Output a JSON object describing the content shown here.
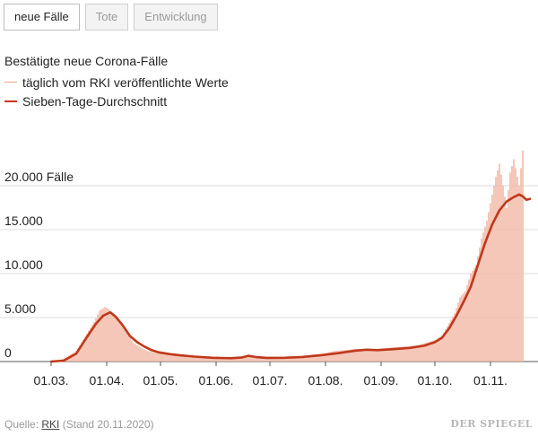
{
  "tabs": [
    {
      "label": "neue Fälle",
      "active": true
    },
    {
      "label": "Tote",
      "active": false
    },
    {
      "label": "Entwicklung",
      "active": false
    }
  ],
  "heading": "Bestätigte neue Corona-Fälle",
  "legend": {
    "daily": {
      "label": "täglich vom RKI veröffentlichte Werte",
      "color": "#e8a48a"
    },
    "average": {
      "label": "Sieben-Tage-Durchschnitt",
      "color": "#c0381b"
    }
  },
  "footer": {
    "source_prefix": "Quelle:",
    "source_link": "RKI",
    "source_suffix": "(Stand 20.11.2020)",
    "brand": "DER SPIEGEL"
  },
  "chart_data": {
    "type": "bar",
    "ylim": [
      0,
      25000
    ],
    "y_ticks": [
      0,
      5000,
      10000,
      15000,
      20000
    ],
    "y_tick_labels": [
      "0",
      "5.000",
      "10.000",
      "15.000",
      "20.000 Fälle"
    ],
    "x_tick_labels": [
      "01.03.",
      "01.04.",
      "01.05.",
      "01.06.",
      "01.07.",
      "01.08.",
      "01.09.",
      "01.10.",
      "01.11."
    ],
    "x_tick_days": [
      0,
      31,
      61,
      92,
      122,
      153,
      184,
      214,
      245
    ],
    "series": [
      {
        "name": "täglich vom RKI veröffentlichte Werte",
        "type": "bar",
        "color": "#f1b9a6",
        "points": [
          [
            0,
            20
          ],
          [
            7,
            300
          ],
          [
            14,
            1200
          ],
          [
            18,
            2500
          ],
          [
            21,
            3500
          ],
          [
            24,
            4500
          ],
          [
            27,
            5800
          ],
          [
            30,
            6200
          ],
          [
            32,
            6000
          ],
          [
            35,
            5200
          ],
          [
            38,
            4700
          ],
          [
            42,
            3300
          ],
          [
            46,
            2100
          ],
          [
            50,
            1600
          ],
          [
            54,
            1200
          ],
          [
            58,
            1000
          ],
          [
            62,
            900
          ],
          [
            66,
            700
          ],
          [
            70,
            650
          ],
          [
            75,
            600
          ],
          [
            82,
            450
          ],
          [
            90,
            350
          ],
          [
            100,
            400
          ],
          [
            105,
            450
          ],
          [
            110,
            800
          ],
          [
            114,
            600
          ],
          [
            118,
            450
          ],
          [
            124,
            400
          ],
          [
            132,
            450
          ],
          [
            140,
            550
          ],
          [
            146,
            800
          ],
          [
            152,
            900
          ],
          [
            158,
            1200
          ],
          [
            164,
            1300
          ],
          [
            170,
            1450
          ],
          [
            176,
            1400
          ],
          [
            182,
            1450
          ],
          [
            190,
            1600
          ],
          [
            196,
            1700
          ],
          [
            200,
            1750
          ],
          [
            205,
            1900
          ],
          [
            210,
            2200
          ],
          [
            215,
            2500
          ],
          [
            218,
            3000
          ],
          [
            221,
            4000
          ],
          [
            225,
            5500
          ],
          [
            228,
            7300
          ],
          [
            231,
            8000
          ],
          [
            234,
            10000
          ],
          [
            237,
            11000
          ],
          [
            240,
            14000
          ],
          [
            243,
            16000
          ],
          [
            246,
            19000
          ],
          [
            248,
            21000
          ],
          [
            250,
            22500
          ],
          [
            252,
            20000
          ],
          [
            254,
            17500
          ],
          [
            256,
            21500
          ],
          [
            258,
            23000
          ],
          [
            261,
            20000
          ],
          [
            263,
            24000
          ]
        ]
      },
      {
        "name": "Sieben-Tage-Durchschnitt",
        "type": "line",
        "color": "#c0381b",
        "points": [
          [
            0,
            0
          ],
          [
            7,
            100
          ],
          [
            14,
            900
          ],
          [
            20,
            2800
          ],
          [
            25,
            4300
          ],
          [
            29,
            5200
          ],
          [
            33,
            5600
          ],
          [
            36,
            5100
          ],
          [
            40,
            4100
          ],
          [
            44,
            2900
          ],
          [
            48,
            2200
          ],
          [
            52,
            1700
          ],
          [
            56,
            1300
          ],
          [
            60,
            1050
          ],
          [
            66,
            850
          ],
          [
            72,
            700
          ],
          [
            80,
            560
          ],
          [
            90,
            430
          ],
          [
            100,
            380
          ],
          [
            106,
            450
          ],
          [
            110,
            650
          ],
          [
            114,
            520
          ],
          [
            120,
            420
          ],
          [
            130,
            430
          ],
          [
            140,
            520
          ],
          [
            150,
            700
          ],
          [
            160,
            950
          ],
          [
            170,
            1250
          ],
          [
            176,
            1350
          ],
          [
            182,
            1300
          ],
          [
            190,
            1400
          ],
          [
            200,
            1550
          ],
          [
            208,
            1800
          ],
          [
            214,
            2200
          ],
          [
            218,
            2700
          ],
          [
            222,
            3800
          ],
          [
            226,
            5200
          ],
          [
            230,
            6800
          ],
          [
            234,
            8500
          ],
          [
            238,
            11000
          ],
          [
            242,
            13500
          ],
          [
            246,
            15600
          ],
          [
            250,
            17200
          ],
          [
            254,
            18200
          ],
          [
            258,
            18700
          ],
          [
            261,
            19000
          ],
          [
            263,
            18800
          ],
          [
            265,
            18400
          ],
          [
            267,
            18500
          ]
        ]
      }
    ]
  }
}
